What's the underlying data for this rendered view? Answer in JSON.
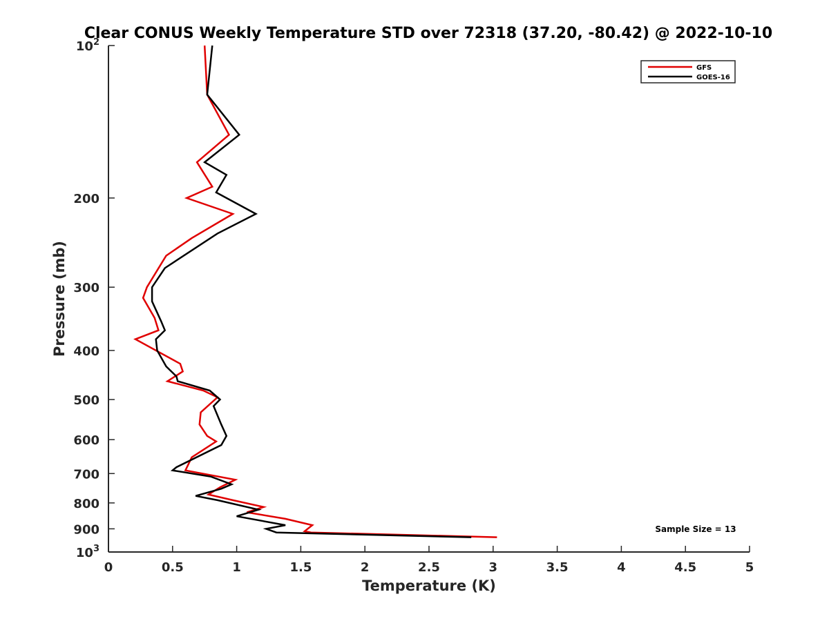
{
  "chart_data": {
    "type": "line",
    "title": "Clear CONUS Weekly Temperature STD over 72318 (37.20, -80.42) @ 2022-10-10",
    "xlabel": "Temperature (K)",
    "ylabel": "Pressure (mb)",
    "xlim": [
      0,
      5
    ],
    "ylim": [
      100,
      1000
    ],
    "y_scale": "log",
    "y_reversed": true,
    "xticks": [
      0,
      0.5,
      1,
      1.5,
      2,
      2.5,
      3,
      3.5,
      4,
      4.5,
      5
    ],
    "xtick_labels": [
      "0",
      "0.5",
      "1",
      "1.5",
      "2",
      "2.5",
      "3",
      "3.5",
      "4",
      "4.5",
      "5"
    ],
    "yticks": [
      100,
      200,
      300,
      400,
      500,
      600,
      700,
      800,
      900,
      1000
    ],
    "ytick_labels": {
      "plain": [
        "",
        "200",
        "300",
        "400",
        "500",
        "600",
        "700",
        "800",
        "900",
        ""
      ],
      "log_labels": [
        {
          "value": 100,
          "base": "10",
          "exp": "2"
        },
        {
          "value": 1000,
          "base": "10",
          "exp": "3"
        }
      ]
    },
    "grid": false,
    "legend_position": "top-right",
    "series": [
      {
        "name": "GFS",
        "color": "#e00000",
        "points": [
          [
            0.75,
            100
          ],
          [
            0.77,
            125
          ],
          [
            0.94,
            150
          ],
          [
            0.69,
            170
          ],
          [
            0.81,
            190
          ],
          [
            0.61,
            200
          ],
          [
            0.97,
            215
          ],
          [
            0.65,
            240
          ],
          [
            0.45,
            260
          ],
          [
            0.3,
            300
          ],
          [
            0.27,
            315
          ],
          [
            0.36,
            345
          ],
          [
            0.39,
            365
          ],
          [
            0.21,
            380
          ],
          [
            0.56,
            425
          ],
          [
            0.58,
            440
          ],
          [
            0.46,
            460
          ],
          [
            0.74,
            480
          ],
          [
            0.85,
            495
          ],
          [
            0.72,
            530
          ],
          [
            0.71,
            560
          ],
          [
            0.77,
            590
          ],
          [
            0.84,
            605
          ],
          [
            0.65,
            650
          ],
          [
            0.6,
            690
          ],
          [
            0.99,
            720
          ],
          [
            0.87,
            745
          ],
          [
            0.78,
            770
          ],
          [
            0.97,
            790
          ],
          [
            1.21,
            815
          ],
          [
            1.08,
            835
          ],
          [
            1.38,
            860
          ],
          [
            1.59,
            885
          ],
          [
            1.53,
            910
          ],
          [
            1.58,
            915
          ],
          [
            3.03,
            935
          ]
        ]
      },
      {
        "name": "GOES-16",
        "color": "#000000",
        "points": [
          [
            0.81,
            100
          ],
          [
            0.77,
            125
          ],
          [
            1.02,
            150
          ],
          [
            0.75,
            170
          ],
          [
            0.92,
            180
          ],
          [
            0.84,
            195
          ],
          [
            1.15,
            215
          ],
          [
            0.85,
            235
          ],
          [
            0.44,
            275
          ],
          [
            0.34,
            300
          ],
          [
            0.34,
            320
          ],
          [
            0.41,
            350
          ],
          [
            0.44,
            365
          ],
          [
            0.37,
            380
          ],
          [
            0.38,
            400
          ],
          [
            0.45,
            430
          ],
          [
            0.53,
            450
          ],
          [
            0.54,
            460
          ],
          [
            0.79,
            480
          ],
          [
            0.87,
            500
          ],
          [
            0.82,
            515
          ],
          [
            0.88,
            560
          ],
          [
            0.92,
            590
          ],
          [
            0.88,
            615
          ],
          [
            0.53,
            680
          ],
          [
            0.5,
            690
          ],
          [
            0.8,
            710
          ],
          [
            0.96,
            735
          ],
          [
            0.88,
            750
          ],
          [
            0.68,
            775
          ],
          [
            0.85,
            790
          ],
          [
            1.17,
            825
          ],
          [
            1.0,
            850
          ],
          [
            1.38,
            885
          ],
          [
            1.23,
            900
          ],
          [
            1.31,
            915
          ],
          [
            2.83,
            935
          ]
        ]
      }
    ],
    "annotation": "Sample Size = 13"
  }
}
